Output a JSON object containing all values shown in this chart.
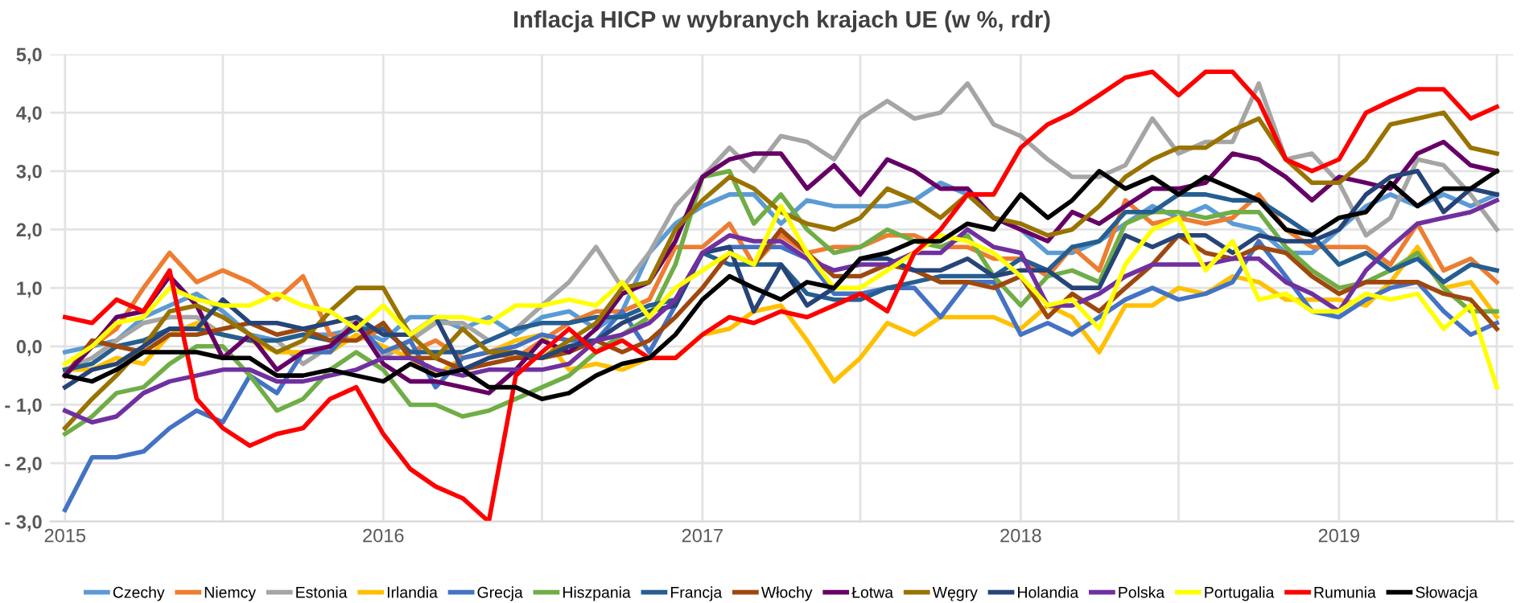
{
  "chart_data": {
    "type": "line",
    "title": "Inflacja HICP w wybranych krajach UE (w %, rdr)",
    "x": [
      "2015-01",
      "2015-02",
      "2015-03",
      "2015-04",
      "2015-05",
      "2015-06",
      "2015-07",
      "2015-08",
      "2015-09",
      "2015-10",
      "2015-11",
      "2015-12",
      "2016-01",
      "2016-02",
      "2016-03",
      "2016-04",
      "2016-05",
      "2016-06",
      "2016-07",
      "2016-08",
      "2016-09",
      "2016-10",
      "2016-11",
      "2016-12",
      "2017-01",
      "2017-02",
      "2017-03",
      "2017-04",
      "2017-05",
      "2017-06",
      "2017-07",
      "2017-08",
      "2017-09",
      "2017-10",
      "2017-11",
      "2017-12",
      "2018-01",
      "2018-02",
      "2018-03",
      "2018-04",
      "2018-05",
      "2018-06",
      "2018-07",
      "2018-08",
      "2018-09",
      "2018-10",
      "2018-11",
      "2018-12",
      "2019-01",
      "2019-02",
      "2019-03",
      "2019-04",
      "2019-05",
      "2019-06",
      "2019-07"
    ],
    "xlim": [
      "2014-12-15",
      "2019-07-20"
    ],
    "xticks": [
      {
        "value": "2015-01",
        "label": "2015"
      },
      {
        "value": "2015-07",
        "label": null
      },
      {
        "value": "2016-01",
        "label": "2016"
      },
      {
        "value": "2016-07",
        "label": null
      },
      {
        "value": "2017-01",
        "label": "2017"
      },
      {
        "value": "2017-07",
        "label": null
      },
      {
        "value": "2018-01",
        "label": "2018"
      },
      {
        "value": "2018-07",
        "label": null
      },
      {
        "value": "2019-01",
        "label": "2019"
      },
      {
        "value": "2019-07",
        "label": null
      }
    ],
    "ylim": [
      -3,
      5
    ],
    "yticks": [
      {
        "value": -3,
        "label": "- 3,0"
      },
      {
        "value": -2,
        "label": "- 2,0"
      },
      {
        "value": -1,
        "label": "- 1,0"
      },
      {
        "value": 0,
        "label": "0,0"
      },
      {
        "value": 1,
        "label": "1,0"
      },
      {
        "value": 2,
        "label": "2,0"
      },
      {
        "value": 3,
        "label": "3,0"
      },
      {
        "value": 4,
        "label": "4,0"
      },
      {
        "value": 5,
        "label": "5,0"
      }
    ],
    "grid": true,
    "legend": "bottom",
    "marker": "none",
    "line_style": "solid",
    "series": [
      {
        "name": "Czechy",
        "color": "#5b9bd5",
        "values": [
          -0.1,
          0,
          0.1,
          0.5,
          0.7,
          0.9,
          0.6,
          0.2,
          0.1,
          0.2,
          0.2,
          0.3,
          0.1,
          0.5,
          0.5,
          0.3,
          0.5,
          0.2,
          0.5,
          0.6,
          0.3,
          0.6,
          1.6,
          2.1,
          2.4,
          2.6,
          2.6,
          2.1,
          2.5,
          2.4,
          2.4,
          2.4,
          2.5,
          2.8,
          2.6,
          2.2,
          2.0,
          1.6,
          1.6,
          1.8,
          2.1,
          2.4,
          2.2,
          2.4,
          2.1,
          2.0,
          1.6,
          1.6,
          2.0,
          2.4,
          2.6,
          2.4,
          2.6,
          2.4,
          2.6
        ]
      },
      {
        "name": "Niemcy",
        "color": "#ed7d31",
        "values": [
          -0.5,
          0,
          0.3,
          1.0,
          1.6,
          1.1,
          1.3,
          1.1,
          0.8,
          1.2,
          0.2,
          0.1,
          0.3,
          -0.1,
          0.1,
          -0.2,
          -0.1,
          -0.2,
          0.1,
          0.4,
          0.6,
          0.6,
          0.8,
          1.7,
          1.7,
          2.1,
          1.4,
          1.9,
          1.6,
          1.7,
          1.7,
          1.9,
          1.9,
          1.7,
          1.7,
          1.5,
          1.5,
          1.2,
          1.7,
          1.3,
          2.5,
          2.1,
          2.2,
          2.1,
          2.2,
          2.6,
          2.0,
          1.7,
          1.7,
          1.7,
          1.4,
          2.1,
          1.3,
          1.5,
          1.1
        ]
      },
      {
        "name": "Estonia",
        "color": "#a5a5a5",
        "values": [
          -0.4,
          -0.2,
          0.1,
          0.4,
          0.5,
          0.5,
          0.2,
          0.1,
          0.1,
          -0.3,
          0,
          0.5,
          -0.2,
          0.1,
          0.4,
          0.4,
          0.1,
          0.3,
          0.7,
          1.1,
          1.7,
          1.0,
          1.6,
          2.4,
          2.9,
          3.4,
          3.0,
          3.6,
          3.5,
          3.2,
          3.9,
          4.2,
          3.9,
          4.0,
          4.5,
          3.8,
          3.6,
          3.2,
          2.9,
          2.9,
          3.1,
          3.9,
          3.3,
          3.5,
          3.5,
          4.5,
          3.2,
          3.3,
          2.8,
          1.9,
          2.2,
          3.2,
          3.1,
          2.6,
          2.0
        ]
      },
      {
        "name": "Irlandia",
        "color": "#ffc000",
        "values": [
          -0.4,
          -0.4,
          -0.2,
          -0.3,
          0.2,
          0.4,
          0.2,
          0.1,
          -0.1,
          -0.1,
          -0.1,
          0.2,
          0,
          -0.2,
          -0.5,
          -0.2,
          -0.1,
          0.1,
          0.2,
          -0.4,
          -0.3,
          -0.4,
          -0.2,
          -0.2,
          0.2,
          0.3,
          0.6,
          0.7,
          0.1,
          -0.6,
          -0.2,
          0.4,
          0.2,
          0.5,
          0.5,
          0.5,
          0.3,
          0.7,
          0.5,
          -0.1,
          0.7,
          0.7,
          1.0,
          0.9,
          1.2,
          1.1,
          0.8,
          0.8,
          0.8,
          0.7,
          1.1,
          1.7,
          1.0,
          1.1,
          0.5
        ]
      },
      {
        "name": "Grecja",
        "color": "#4472c4",
        "values": [
          -2.8,
          -1.9,
          -1.9,
          -1.8,
          -1.4,
          -1.1,
          -1.3,
          -0.5,
          -0.8,
          -0.1,
          -0.1,
          0.4,
          -0.1,
          0.1,
          -0.7,
          -0.2,
          -0.1,
          0,
          0.2,
          0.1,
          0.1,
          0.6,
          -0.1,
          0.7,
          1.6,
          1.7,
          1.7,
          1.7,
          1.5,
          0.9,
          0.9,
          1.0,
          1.0,
          0.5,
          1.1,
          1.1,
          0.2,
          0.4,
          0.2,
          0.5,
          0.8,
          1.0,
          0.8,
          0.9,
          1.1,
          1.8,
          1.2,
          0.6,
          0.5,
          0.8,
          1.0,
          1.1,
          0.6,
          0.2,
          0.4
        ]
      },
      {
        "name": "Hiszpania",
        "color": "#70ad47",
        "values": [
          -1.5,
          -1.2,
          -0.8,
          -0.7,
          -0.3,
          0,
          0,
          -0.5,
          -1.1,
          -0.9,
          -0.4,
          -0.1,
          -0.4,
          -1.0,
          -1.0,
          -1.2,
          -1.1,
          -0.9,
          -0.7,
          -0.5,
          -0.1,
          0.2,
          0.5,
          1.4,
          2.9,
          3.0,
          2.1,
          2.6,
          2.0,
          1.6,
          1.7,
          2.0,
          1.8,
          1.7,
          1.9,
          1.2,
          0.7,
          1.2,
          1.3,
          1.1,
          2.1,
          2.3,
          2.3,
          2.2,
          2.3,
          2.3,
          1.7,
          1.3,
          1.0,
          1.1,
          1.3,
          1.6,
          1.0,
          0.6,
          0.6
        ]
      },
      {
        "name": "Francja",
        "color": "#255e91",
        "values": [
          -0.4,
          -0.3,
          0,
          0.1,
          0.3,
          0.3,
          0.2,
          0.1,
          0.1,
          0.2,
          0.1,
          0.3,
          0.3,
          -0.1,
          -0.1,
          -0.1,
          0.1,
          0.3,
          0.4,
          0.4,
          0.5,
          0.5,
          0.7,
          0.8,
          1.6,
          1.4,
          1.4,
          1.4,
          0.9,
          0.8,
          0.8,
          1.0,
          1.1,
          1.2,
          1.2,
          1.2,
          1.5,
          1.3,
          1.7,
          1.8,
          2.3,
          2.3,
          2.6,
          2.6,
          2.5,
          2.5,
          2.2,
          1.9,
          1.4,
          1.6,
          1.3,
          1.5,
          1.1,
          1.4,
          1.3
        ]
      },
      {
        "name": "Włochy",
        "color": "#9e480e",
        "values": [
          -0.5,
          0.1,
          0,
          -0.1,
          0.2,
          0.2,
          0.3,
          0.4,
          0.2,
          0.3,
          0.1,
          0.1,
          0.4,
          -0.2,
          -0.2,
          -0.4,
          -0.3,
          -0.2,
          -0.2,
          -0.1,
          0.1,
          -0.1,
          0.1,
          0.5,
          1.0,
          1.6,
          1.4,
          2.0,
          1.6,
          1.2,
          1.2,
          1.4,
          1.3,
          1.1,
          1.1,
          1.0,
          1.2,
          0.5,
          0.9,
          0.6,
          1.0,
          1.4,
          1.9,
          1.6,
          1.5,
          1.7,
          1.6,
          1.2,
          0.9,
          1.1,
          1.1,
          1.1,
          0.9,
          0.8,
          0.3
        ]
      },
      {
        "name": "Łotwa",
        "color": "#660066",
        "values": [
          -0.5,
          0,
          0.5,
          0.6,
          1.2,
          0.7,
          -0.2,
          0.2,
          -0.4,
          -0.1,
          0,
          0.4,
          -0.3,
          -0.6,
          -0.6,
          -0.7,
          -0.8,
          -0.4,
          0.1,
          -0.1,
          0.3,
          0.9,
          1.1,
          1.8,
          2.9,
          3.2,
          3.3,
          3.3,
          2.7,
          3.1,
          2.6,
          3.2,
          3.0,
          2.7,
          2.7,
          2.2,
          2.0,
          1.8,
          2.3,
          2.1,
          2.4,
          2.7,
          2.7,
          2.8,
          3.3,
          3.2,
          2.9,
          2.5,
          2.9,
          2.8,
          2.7,
          3.3,
          3.5,
          3.1,
          3.0
        ]
      },
      {
        "name": "Węgry",
        "color": "#997300",
        "values": [
          -1.4,
          -0.9,
          -0.5,
          0,
          0.6,
          0.7,
          0.5,
          0.2,
          -0.1,
          0.1,
          0.6,
          1.0,
          1.0,
          0.2,
          -0.2,
          0.3,
          -0.1,
          -0.1,
          -0.2,
          0.1,
          0.4,
          1.0,
          1.1,
          2.0,
          2.5,
          2.9,
          2.7,
          2.3,
          2.1,
          2.0,
          2.2,
          2.7,
          2.5,
          2.2,
          2.6,
          2.2,
          2.1,
          1.9,
          2.0,
          2.4,
          2.9,
          3.2,
          3.4,
          3.4,
          3.7,
          3.9,
          3.2,
          2.8,
          2.8,
          3.2,
          3.8,
          3.9,
          4.0,
          3.4,
          3.3
        ]
      },
      {
        "name": "Holandia",
        "color": "#264478",
        "values": [
          -0.7,
          -0.4,
          -0.3,
          0,
          0.3,
          0.3,
          0.8,
          0.4,
          0.4,
          0.3,
          0.4,
          0.5,
          0.2,
          0.2,
          0.5,
          -0.4,
          -0.2,
          -0.1,
          -0.2,
          0,
          0.1,
          0.4,
          0.6,
          0.7,
          1.6,
          1.7,
          0.6,
          1.4,
          0.7,
          1.0,
          1.5,
          1.5,
          1.3,
          1.3,
          1.5,
          1.2,
          1.3,
          1.3,
          1.0,
          1.0,
          1.9,
          1.7,
          1.9,
          1.9,
          1.6,
          1.9,
          1.8,
          1.8,
          2.0,
          2.6,
          2.9,
          3.0,
          2.3,
          2.7,
          2.6
        ]
      },
      {
        "name": "Polska",
        "color": "#7030a0",
        "values": [
          -1.1,
          -1.3,
          -1.2,
          -0.8,
          -0.6,
          -0.5,
          -0.4,
          -0.4,
          -0.6,
          -0.6,
          -0.5,
          -0.4,
          -0.2,
          -0.2,
          -0.4,
          -0.5,
          -0.4,
          -0.4,
          -0.4,
          -0.3,
          0.1,
          0.2,
          0.4,
          0.8,
          1.6,
          1.9,
          1.8,
          1.8,
          1.5,
          1.3,
          1.4,
          1.4,
          1.6,
          1.6,
          2.0,
          1.7,
          1.6,
          0.7,
          0.7,
          0.9,
          1.2,
          1.4,
          1.4,
          1.4,
          1.5,
          1.5,
          1.1,
          0.9,
          0.6,
          1.3,
          1.7,
          2.1,
          2.2,
          2.3,
          2.5
        ]
      },
      {
        "name": "Portugalia",
        "color": "#ffff00",
        "values": [
          -0.3,
          0,
          0.4,
          0.5,
          1.0,
          0.8,
          0.7,
          0.7,
          0.9,
          0.7,
          0.6,
          0.3,
          0.7,
          0.2,
          0.5,
          0.5,
          0.4,
          0.7,
          0.7,
          0.8,
          0.7,
          1.1,
          0.5,
          1.0,
          1.3,
          1.6,
          1.4,
          2.4,
          1.6,
          1.0,
          1.0,
          1.3,
          1.6,
          1.9,
          1.8,
          1.6,
          1.2,
          0.7,
          0.8,
          0.3,
          1.4,
          2.0,
          2.2,
          1.3,
          1.8,
          0.8,
          0.9,
          0.6,
          0.6,
          0.9,
          0.8,
          0.9,
          0.3,
          0.7,
          -0.7
        ]
      },
      {
        "name": "Rumunia",
        "color": "#ff0000",
        "values": [
          0.5,
          0.4,
          0.8,
          0.6,
          1.3,
          -0.9,
          -1.4,
          -1.7,
          -1.5,
          -1.4,
          -0.9,
          -0.7,
          -1.5,
          -2.1,
          -2.4,
          -2.6,
          -3.0,
          -0.5,
          -0.1,
          0.3,
          -0.1,
          0.1,
          -0.2,
          -0.2,
          0.2,
          0.5,
          0.4,
          0.6,
          0.5,
          0.7,
          0.9,
          0.6,
          1.6,
          2.0,
          2.6,
          2.6,
          3.4,
          3.8,
          4.0,
          4.3,
          4.6,
          4.7,
          4.3,
          4.7,
          4.7,
          4.2,
          3.2,
          3.0,
          3.2,
          4.0,
          4.2,
          4.4,
          4.4,
          3.9,
          4.1
        ]
      },
      {
        "name": "Słowacja",
        "color": "#000000",
        "values": [
          -0.5,
          -0.6,
          -0.4,
          -0.1,
          -0.1,
          -0.1,
          -0.2,
          -0.2,
          -0.5,
          -0.5,
          -0.4,
          -0.5,
          -0.6,
          -0.3,
          -0.5,
          -0.4,
          -0.7,
          -0.7,
          -0.9,
          -0.8,
          -0.5,
          -0.3,
          -0.2,
          0.2,
          0.8,
          1.2,
          1.0,
          0.8,
          1.1,
          1.0,
          1.5,
          1.6,
          1.8,
          1.8,
          2.1,
          2.0,
          2.6,
          2.2,
          2.5,
          3.0,
          2.7,
          2.9,
          2.6,
          2.9,
          2.7,
          2.5,
          2.0,
          1.9,
          2.2,
          2.3,
          2.8,
          2.4,
          2.7,
          2.7,
          3.0
        ]
      }
    ]
  }
}
